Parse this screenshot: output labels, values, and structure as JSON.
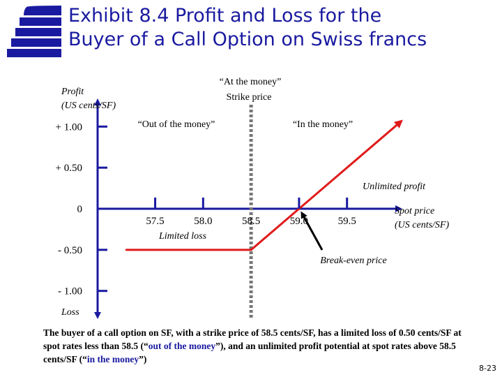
{
  "title": {
    "line1": "Exhibit 8.4  Profit and Loss for the",
    "line2": "Buyer of a Call Option on Swiss francs"
  },
  "chart_data": {
    "type": "line",
    "ylabel_line1": "Profit",
    "ylabel_line2": "(US cents/SF)",
    "ylabel_bottom": "Loss",
    "xlabel_line1": "Spot price",
    "xlabel_line2": "(US cents/SF)",
    "y_ticks": [
      {
        "value": 1.0,
        "label": "+ 1.00"
      },
      {
        "value": 0.5,
        "label": "+ 0.50"
      },
      {
        "value": 0,
        "label": "0"
      },
      {
        "value": -0.5,
        "label": "- 0.50"
      },
      {
        "value": -1.0,
        "label": "- 1.00"
      }
    ],
    "x_ticks": [
      {
        "value": 57.5,
        "label": "57.5"
      },
      {
        "value": 58.0,
        "label": "58.0"
      },
      {
        "value": 58.5,
        "label": "58.5"
      },
      {
        "value": 59.0,
        "label": "59.0"
      },
      {
        "value": 59.5,
        "label": "59.5"
      }
    ],
    "xlim": [
      56.9,
      60.2
    ],
    "ylim": [
      -1.3,
      1.3
    ],
    "series": [
      {
        "color": "#e01b1b",
        "x": [
          57.2,
          58.5,
          59.0,
          60.05
        ],
        "y": [
          -0.5,
          -0.5,
          0,
          1.05
        ]
      }
    ],
    "strike": 58.5,
    "break_even": 59.0,
    "annotations": {
      "strike_line1": "“At the money”",
      "strike_line2": "Strike price",
      "out_of_money": "“Out of the money”",
      "in_the_money": "“In the money”",
      "unlimited_profit": "Unlimited profit",
      "limited_loss": "Limited loss",
      "break_even_label": "Break-even price"
    },
    "colors": {
      "axis": "#1a1aa0",
      "payoff": "#e01b1b",
      "strike_line": "#777777",
      "pointer": "#000000"
    }
  },
  "caption": {
    "part1": "The buyer of a call option on SF, with a strike price of 58.5 cents/SF, has a limited loss of 0.50 cents/SF at spot rates less than 58.5 (“",
    "out_of_money": "out of the money",
    "part2": "”), and an unlimited profit potential at spot rates above 58.5 cents/SF (“",
    "in_the_money": "in the money",
    "part3": "”)"
  },
  "page_number": "8-23"
}
